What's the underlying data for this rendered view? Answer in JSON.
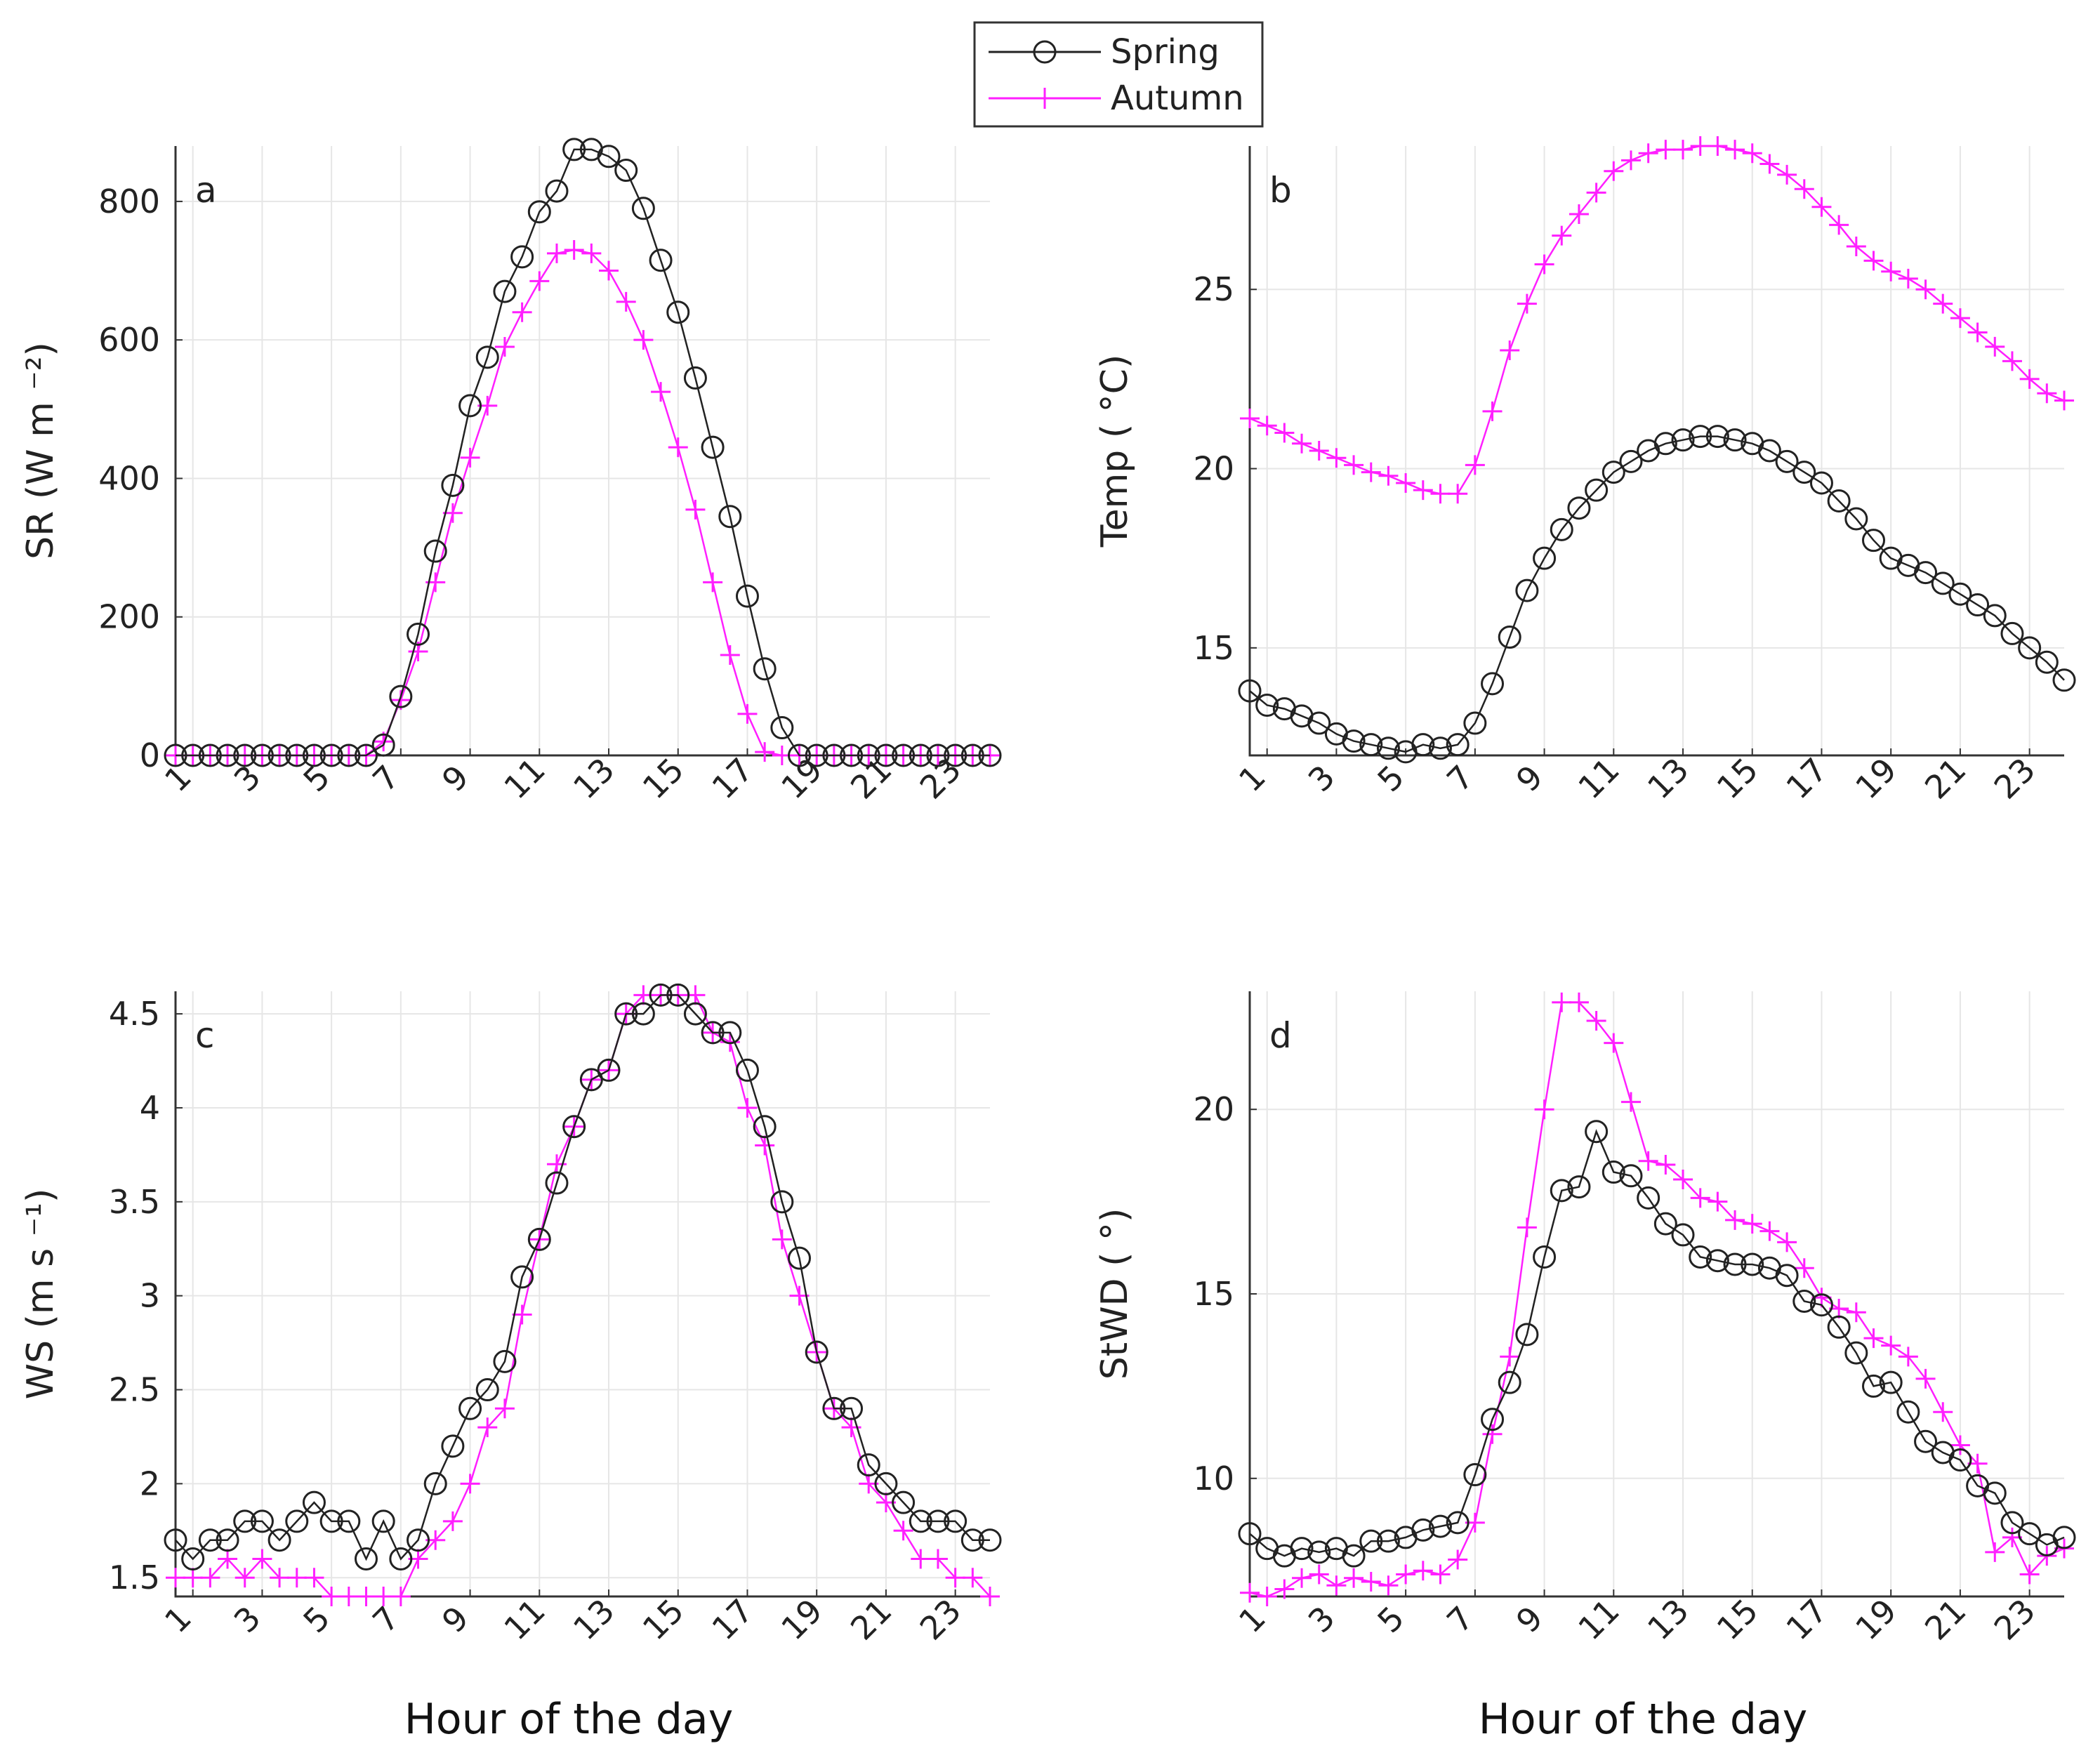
{
  "colors": {
    "spring": "#222222",
    "autumn": "#ff1fff"
  },
  "legend": {
    "spring_label": "Spring",
    "autumn_label": "Autumn"
  },
  "chart_data": [
    {
      "id": "a",
      "type": "line",
      "panel_label": "a",
      "ylabel": "SR (W m ⁻²)",
      "xlabel": "",
      "ylim": [
        0,
        880
      ],
      "yticks": [
        0,
        200,
        400,
        600,
        800
      ],
      "xlim": [
        0.5,
        24
      ],
      "xticks": [
        1,
        3,
        5,
        7,
        9,
        11,
        13,
        15,
        17,
        19,
        21,
        23
      ],
      "series": [
        {
          "name": "Spring",
          "marker": "circle",
          "x": [
            0.5,
            1,
            1.5,
            2,
            2.5,
            3,
            3.5,
            4,
            4.5,
            5,
            5.5,
            6,
            6.5,
            7,
            7.5,
            8,
            8.5,
            9,
            9.5,
            10,
            10.5,
            11,
            11.5,
            12,
            12.5,
            13,
            13.5,
            14,
            14.5,
            15,
            15.5,
            16,
            16.5,
            17,
            17.5,
            18,
            18.5,
            19,
            19.5,
            20,
            20.5,
            21,
            21.5,
            22,
            22.5,
            23,
            23.5,
            24
          ],
          "y": [
            0,
            0,
            0,
            0,
            0,
            0,
            0,
            0,
            0,
            0,
            0,
            0,
            15,
            85,
            175,
            295,
            390,
            505,
            575,
            670,
            720,
            785,
            815,
            875,
            875,
            865,
            845,
            790,
            715,
            640,
            545,
            445,
            345,
            230,
            125,
            40,
            0,
            0,
            0,
            0,
            0,
            0,
            0,
            0,
            0,
            0,
            0,
            0
          ]
        },
        {
          "name": "Autumn",
          "marker": "plus",
          "x": [
            0.5,
            1,
            1.5,
            2,
            2.5,
            3,
            3.5,
            4,
            4.5,
            5,
            5.5,
            6,
            6.5,
            7,
            7.5,
            8,
            8.5,
            9,
            9.5,
            10,
            10.5,
            11,
            11.5,
            12,
            12.5,
            13,
            13.5,
            14,
            14.5,
            15,
            15.5,
            16,
            16.5,
            17,
            17.5,
            18,
            18.5,
            19,
            19.5,
            20,
            20.5,
            21,
            21.5,
            22,
            22.5,
            23,
            23.5,
            24
          ],
          "y": [
            0,
            0,
            0,
            0,
            0,
            0,
            0,
            0,
            0,
            0,
            0,
            0,
            20,
            80,
            150,
            250,
            350,
            430,
            505,
            590,
            640,
            685,
            725,
            730,
            725,
            700,
            655,
            600,
            525,
            445,
            355,
            250,
            145,
            60,
            5,
            0,
            0,
            0,
            0,
            0,
            0,
            0,
            0,
            0,
            0,
            0,
            0,
            0
          ]
        }
      ]
    },
    {
      "id": "b",
      "type": "line",
      "panel_label": "b",
      "ylabel": "Temp ( °C)",
      "xlabel": "",
      "ylim": [
        12,
        29
      ],
      "yticks": [
        15,
        20,
        25
      ],
      "xlim": [
        0.5,
        24
      ],
      "xticks": [
        1,
        3,
        5,
        7,
        9,
        11,
        13,
        15,
        17,
        19,
        21,
        23
      ],
      "series": [
        {
          "name": "Spring",
          "marker": "circle",
          "x": [
            0.5,
            1,
            1.5,
            2,
            2.5,
            3,
            3.5,
            4,
            4.5,
            5,
            5.5,
            6,
            6.5,
            7,
            7.5,
            8,
            8.5,
            9,
            9.5,
            10,
            10.5,
            11,
            11.5,
            12,
            12.5,
            13,
            13.5,
            14,
            14.5,
            15,
            15.5,
            16,
            16.5,
            17,
            17.5,
            18,
            18.5,
            19,
            19.5,
            20,
            20.5,
            21,
            21.5,
            22,
            22.5,
            23,
            23.5,
            24
          ],
          "y": [
            13.8,
            13.4,
            13.3,
            13.1,
            12.9,
            12.6,
            12.4,
            12.3,
            12.2,
            12.1,
            12.3,
            12.2,
            12.3,
            12.9,
            14.0,
            15.3,
            16.6,
            17.5,
            18.3,
            18.9,
            19.4,
            19.9,
            20.2,
            20.5,
            20.7,
            20.8,
            20.9,
            20.9,
            20.8,
            20.7,
            20.5,
            20.2,
            19.9,
            19.6,
            19.1,
            18.6,
            18.0,
            17.5,
            17.3,
            17.1,
            16.8,
            16.5,
            16.2,
            15.9,
            15.4,
            15.0,
            14.6,
            14.1
          ]
        },
        {
          "name": "Autumn",
          "marker": "plus",
          "x": [
            0.5,
            1,
            1.5,
            2,
            2.5,
            3,
            3.5,
            4,
            4.5,
            5,
            5.5,
            6,
            6.5,
            7,
            7.5,
            8,
            8.5,
            9,
            9.5,
            10,
            10.5,
            11,
            11.5,
            12,
            12.5,
            13,
            13.5,
            14,
            14.5,
            15,
            15.5,
            16,
            16.5,
            17,
            17.5,
            18,
            18.5,
            19,
            19.5,
            20,
            20.5,
            21,
            21.5,
            22,
            22.5,
            23,
            23.5,
            24
          ],
          "y": [
            21.4,
            21.2,
            21.0,
            20.7,
            20.5,
            20.3,
            20.1,
            19.9,
            19.8,
            19.6,
            19.4,
            19.3,
            19.3,
            20.1,
            21.6,
            23.3,
            24.6,
            25.7,
            26.5,
            27.1,
            27.7,
            28.3,
            28.6,
            28.8,
            28.9,
            28.9,
            29.0,
            29.0,
            28.9,
            28.8,
            28.5,
            28.2,
            27.8,
            27.3,
            26.8,
            26.2,
            25.8,
            25.5,
            25.3,
            25.0,
            24.6,
            24.2,
            23.8,
            23.4,
            23.0,
            22.5,
            22.1,
            21.9
          ]
        }
      ]
    },
    {
      "id": "c",
      "type": "line",
      "panel_label": "c",
      "ylabel": "WS (m s ⁻¹)",
      "xlabel": "Hour of the day",
      "ylim": [
        1.4,
        4.62
      ],
      "yticks": [
        1.5,
        2,
        2.5,
        3,
        3.5,
        4,
        4.5
      ],
      "xlim": [
        0.5,
        24
      ],
      "xticks": [
        1,
        3,
        5,
        7,
        9,
        11,
        13,
        15,
        17,
        19,
        21,
        23
      ],
      "series": [
        {
          "name": "Spring",
          "marker": "circle",
          "x": [
            0.5,
            1,
            1.5,
            2,
            2.5,
            3,
            3.5,
            4,
            4.5,
            5,
            5.5,
            6,
            6.5,
            7,
            7.5,
            8,
            8.5,
            9,
            9.5,
            10,
            10.5,
            11,
            11.5,
            12,
            12.5,
            13,
            13.5,
            14,
            14.5,
            15,
            15.5,
            16,
            16.5,
            17,
            17.5,
            18,
            18.5,
            19,
            19.5,
            20,
            20.5,
            21,
            21.5,
            22,
            22.5,
            23,
            23.5,
            24
          ],
          "y": [
            1.7,
            1.6,
            1.7,
            1.7,
            1.8,
            1.8,
            1.7,
            1.8,
            1.9,
            1.8,
            1.8,
            1.6,
            1.8,
            1.6,
            1.7,
            2.0,
            2.2,
            2.4,
            2.5,
            2.65,
            3.1,
            3.3,
            3.6,
            3.9,
            4.15,
            4.2,
            4.5,
            4.5,
            4.6,
            4.6,
            4.5,
            4.4,
            4.4,
            4.2,
            3.9,
            3.5,
            3.2,
            2.7,
            2.4,
            2.4,
            2.1,
            2.0,
            1.9,
            1.8,
            1.8,
            1.8,
            1.7,
            1.7
          ]
        },
        {
          "name": "Autumn",
          "marker": "plus",
          "x": [
            0.5,
            1,
            1.5,
            2,
            2.5,
            3,
            3.5,
            4,
            4.5,
            5,
            5.5,
            6,
            6.5,
            7,
            7.5,
            8,
            8.5,
            9,
            9.5,
            10,
            10.5,
            11,
            11.5,
            12,
            12.5,
            13,
            13.5,
            14,
            14.5,
            15,
            15.5,
            16,
            16.5,
            17,
            17.5,
            18,
            18.5,
            19,
            19.5,
            20,
            20.5,
            21,
            21.5,
            22,
            22.5,
            23,
            23.5,
            24
          ],
          "y": [
            1.5,
            1.5,
            1.5,
            1.6,
            1.5,
            1.6,
            1.5,
            1.5,
            1.5,
            1.4,
            1.4,
            1.4,
            1.4,
            1.4,
            1.6,
            1.7,
            1.8,
            2.0,
            2.3,
            2.4,
            2.9,
            3.3,
            3.7,
            3.9,
            4.15,
            4.2,
            4.5,
            4.6,
            4.6,
            4.6,
            4.6,
            4.4,
            4.35,
            4.0,
            3.8,
            3.3,
            3.0,
            2.7,
            2.4,
            2.3,
            2.0,
            1.9,
            1.75,
            1.6,
            1.6,
            1.5,
            1.5,
            1.4
          ]
        }
      ]
    },
    {
      "id": "d",
      "type": "line",
      "panel_label": "d",
      "ylabel": "StWD ( °)",
      "xlabel": "Hour of the day",
      "ylim": [
        6.8,
        23.2
      ],
      "yticks": [
        10,
        15,
        20
      ],
      "xlim": [
        0.5,
        24
      ],
      "xticks": [
        1,
        3,
        5,
        7,
        9,
        11,
        13,
        15,
        17,
        19,
        21,
        23
      ],
      "series": [
        {
          "name": "Spring",
          "marker": "circle",
          "x": [
            0.5,
            1,
            1.5,
            2,
            2.5,
            3,
            3.5,
            4,
            4.5,
            5,
            5.5,
            6,
            6.5,
            7,
            7.5,
            8,
            8.5,
            9,
            9.5,
            10,
            10.5,
            11,
            11.5,
            12,
            12.5,
            13,
            13.5,
            14,
            14.5,
            15,
            15.5,
            16,
            16.5,
            17,
            17.5,
            18,
            18.5,
            19,
            19.5,
            20,
            20.5,
            21,
            21.5,
            22,
            22.5,
            23,
            23.5,
            24
          ],
          "y": [
            8.5,
            8.1,
            7.9,
            8.1,
            8.0,
            8.1,
            7.9,
            8.3,
            8.3,
            8.4,
            8.6,
            8.7,
            8.8,
            10.1,
            11.6,
            12.6,
            13.9,
            16.0,
            17.8,
            17.9,
            19.4,
            18.3,
            18.2,
            17.6,
            16.9,
            16.6,
            16.0,
            15.9,
            15.8,
            15.8,
            15.7,
            15.5,
            14.8,
            14.7,
            14.1,
            13.4,
            12.5,
            12.6,
            11.8,
            11.0,
            10.7,
            10.5,
            9.8,
            9.6,
            8.8,
            8.5,
            8.2,
            8.4
          ]
        },
        {
          "name": "Autumn",
          "marker": "plus",
          "x": [
            0.5,
            1,
            1.5,
            2,
            2.5,
            3,
            3.5,
            4,
            4.5,
            5,
            5.5,
            6,
            6.5,
            7,
            7.5,
            8,
            8.5,
            9,
            9.5,
            10,
            10.5,
            11,
            11.5,
            12,
            12.5,
            13,
            13.5,
            14,
            14.5,
            15,
            15.5,
            16,
            16.5,
            17,
            17.5,
            18,
            18.5,
            19,
            19.5,
            20,
            20.5,
            21,
            21.5,
            22,
            22.5,
            23,
            23.5,
            24
          ],
          "y": [
            6.9,
            6.8,
            7.0,
            7.3,
            7.4,
            7.1,
            7.3,
            7.2,
            7.1,
            7.4,
            7.5,
            7.4,
            7.8,
            8.8,
            11.2,
            13.3,
            16.8,
            20.0,
            22.9,
            22.9,
            22.4,
            21.8,
            20.2,
            18.6,
            18.5,
            18.1,
            17.6,
            17.5,
            17.0,
            16.9,
            16.7,
            16.4,
            15.7,
            14.9,
            14.6,
            14.5,
            13.8,
            13.6,
            13.3,
            12.7,
            11.8,
            10.9,
            10.4,
            8.0,
            8.4,
            7.4,
            7.9,
            8.1
          ]
        }
      ]
    }
  ]
}
